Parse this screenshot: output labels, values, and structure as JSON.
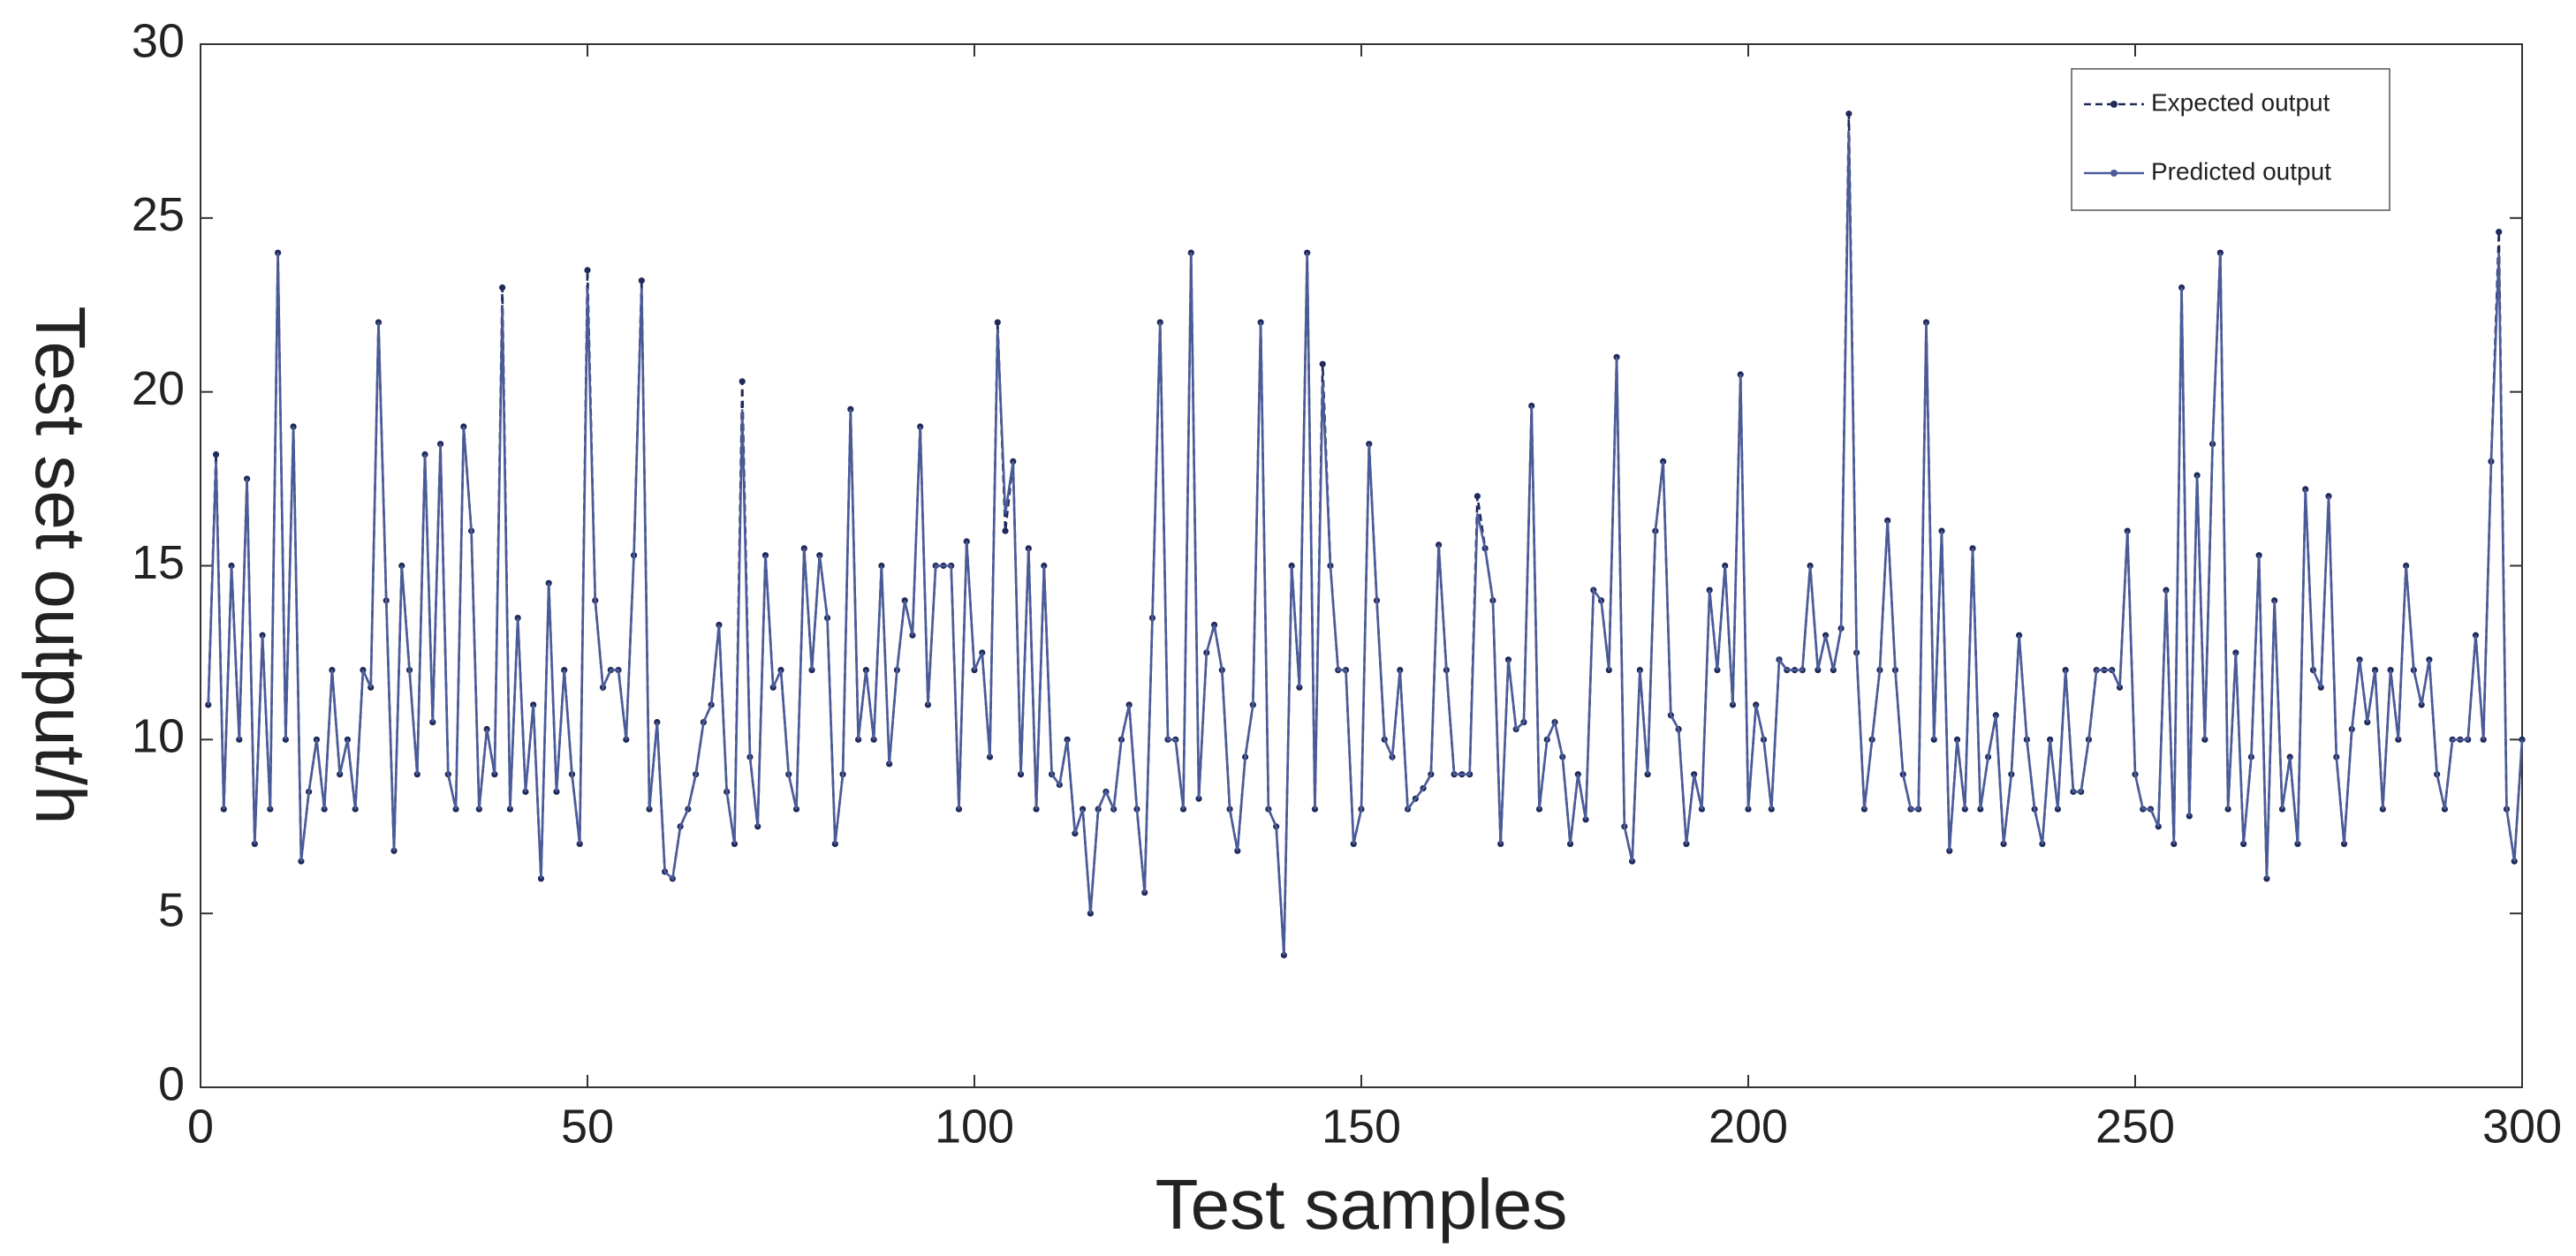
{
  "chart_data": {
    "type": "line",
    "xlabel": "Test samples",
    "ylabel": "Test set output/h",
    "xlim": [
      0,
      300
    ],
    "xticks": [
      0,
      50,
      100,
      150,
      200,
      250,
      300
    ],
    "ylim": [
      0,
      30
    ],
    "yticks": [
      0,
      5,
      10,
      15,
      20,
      25,
      30
    ],
    "legend": "upper right",
    "x": [
      1,
      2,
      3,
      4,
      5,
      6,
      7,
      8,
      9,
      10,
      11,
      12,
      13,
      14,
      15,
      16,
      17,
      18,
      19,
      20,
      21,
      22,
      23,
      24,
      25,
      26,
      27,
      28,
      29,
      30,
      31,
      32,
      33,
      34,
      35,
      36,
      37,
      38,
      39,
      40,
      41,
      42,
      43,
      44,
      45,
      46,
      47,
      48,
      49,
      50,
      51,
      52,
      53,
      54,
      55,
      56,
      57,
      58,
      59,
      60,
      61,
      62,
      63,
      64,
      65,
      66,
      67,
      68,
      69,
      70,
      71,
      72,
      73,
      74,
      75,
      76,
      77,
      78,
      79,
      80,
      81,
      82,
      83,
      84,
      85,
      86,
      87,
      88,
      89,
      90,
      91,
      92,
      93,
      94,
      95,
      96,
      97,
      98,
      99,
      100,
      101,
      102,
      103,
      104,
      105,
      106,
      107,
      108,
      109,
      110,
      111,
      112,
      113,
      114,
      115,
      116,
      117,
      118,
      119,
      120,
      121,
      122,
      123,
      124,
      125,
      126,
      127,
      128,
      129,
      130,
      131,
      132,
      133,
      134,
      135,
      136,
      137,
      138,
      139,
      140,
      141,
      142,
      143,
      144,
      145,
      146,
      147,
      148,
      149,
      150,
      151,
      152,
      153,
      154,
      155,
      156,
      157,
      158,
      159,
      160,
      161,
      162,
      163,
      164,
      165,
      166,
      167,
      168,
      169,
      170,
      171,
      172,
      173,
      174,
      175,
      176,
      177,
      178,
      179,
      180,
      181,
      182,
      183,
      184,
      185,
      186,
      187,
      188,
      189,
      190,
      191,
      192,
      193,
      194,
      195,
      196,
      197,
      198,
      199,
      200,
      201,
      202,
      203,
      204,
      205,
      206,
      207,
      208,
      209,
      210,
      211,
      212,
      213,
      214,
      215,
      216,
      217,
      218,
      219,
      220,
      221,
      222,
      223,
      224,
      225,
      226,
      227,
      228,
      229,
      230,
      231,
      232,
      233,
      234,
      235,
      236,
      237,
      238,
      239,
      240,
      241,
      242,
      243,
      244,
      245,
      246,
      247,
      248,
      249,
      250,
      251,
      252,
      253,
      254,
      255,
      256,
      257,
      258,
      259,
      260,
      261,
      262,
      263,
      264,
      265,
      266,
      267,
      268,
      269,
      270,
      271,
      272,
      273,
      274,
      275,
      276,
      277,
      278,
      279,
      280,
      281,
      282,
      283,
      284,
      285,
      286,
      287,
      288,
      289,
      290,
      291,
      292,
      293,
      294,
      295,
      296,
      297,
      298,
      299,
      300
    ],
    "series": [
      {
        "name": "Expected output",
        "color": "#1f2a5a",
        "style": "dashed",
        "values": [
          11,
          18.2,
          8,
          15,
          10,
          17.5,
          7,
          13,
          8,
          24,
          10,
          19,
          6.5,
          8.5,
          10,
          8,
          12,
          9,
          10,
          8,
          12,
          11.5,
          22,
          14,
          6.8,
          15,
          12,
          9,
          18.2,
          10.5,
          18.5,
          9,
          8,
          19,
          16,
          8,
          10.3,
          9,
          23,
          8,
          13.5,
          8.5,
          11,
          6,
          14.5,
          8.5,
          12,
          9,
          7,
          23.5,
          14,
          11.5,
          12,
          12,
          10,
          15.3,
          23.2,
          8,
          10.5,
          6.2,
          6,
          7.5,
          8,
          9,
          10.5,
          11,
          13.3,
          8.5,
          7,
          20.3,
          9.5,
          7.5,
          15.3,
          11.5,
          12,
          9,
          8,
          15.5,
          12,
          15.3,
          13.5,
          7,
          9,
          19.5,
          10,
          12,
          10,
          15,
          9.3,
          12,
          14,
          13,
          19,
          11,
          15,
          15,
          15,
          8,
          15.7,
          12,
          12.5,
          9.5,
          22,
          16,
          18,
          9,
          15.5,
          8,
          15,
          9,
          8.7,
          10,
          7.3,
          8,
          5,
          8,
          8.5,
          8,
          10,
          11,
          8,
          5.6,
          13.5,
          22,
          10,
          10,
          8,
          24,
          8.3,
          12.5,
          13.3,
          12,
          8,
          6.8,
          9.5,
          11,
          22,
          8,
          7.5,
          3.8,
          15,
          11.5,
          24,
          8,
          20.8,
          15,
          12,
          12,
          7,
          8,
          18.5,
          14,
          10,
          9.5,
          12,
          8,
          8.3,
          8.6,
          9,
          15.6,
          12,
          9,
          9,
          9,
          17,
          15.5,
          14,
          7,
          12.3,
          10.3,
          10.5,
          19.6,
          8,
          10,
          10.5,
          9.5,
          7,
          9,
          7.7,
          14.3,
          14,
          12,
          21,
          7.5,
          6.5,
          12,
          9,
          16,
          18,
          10.7,
          10.3,
          7,
          9,
          8,
          14.3,
          12,
          15,
          11,
          20.5,
          8,
          11,
          10,
          8,
          12.3,
          12,
          12,
          12,
          15,
          12,
          13,
          12,
          13.2,
          28,
          12.5,
          8,
          10,
          12,
          16.3,
          12,
          9,
          8,
          8,
          22,
          10,
          16,
          6.8,
          10,
          8,
          15.5,
          8,
          9.5,
          10.7,
          7,
          9,
          13,
          10,
          8,
          7,
          10,
          8,
          12,
          8.5,
          8.5,
          10,
          12,
          12,
          12,
          11.5,
          16,
          9,
          8,
          8,
          7.5,
          14.3,
          7,
          23,
          7.8,
          17.6,
          10,
          18.5,
          24,
          8,
          12.5,
          7,
          9.5,
          15.3,
          6,
          14,
          8,
          9.5,
          7,
          17.2,
          12,
          11.5,
          17,
          9.5,
          7,
          10.3,
          12.3,
          10.5,
          12,
          8,
          12,
          10,
          15,
          12,
          11,
          12.3,
          9,
          8,
          10,
          10,
          10,
          13,
          10,
          18,
          24.6,
          8,
          6.5,
          10
        ]
      },
      {
        "name": "Predicted output",
        "color": "#4b5b98",
        "style": "solid",
        "values": [
          11,
          18,
          8,
          15,
          10,
          17.5,
          7,
          13,
          8,
          24,
          10,
          19,
          6.5,
          8.5,
          10,
          8,
          12,
          9,
          10,
          8,
          12,
          11.5,
          22,
          14,
          6.8,
          15,
          12,
          9,
          18.2,
          10.5,
          18.5,
          9,
          8,
          19,
          16,
          8,
          10.3,
          9,
          22.5,
          8,
          13.5,
          8.5,
          11,
          6,
          14.5,
          8.5,
          12,
          9,
          7,
          23,
          14,
          11.5,
          12,
          12,
          10,
          15.3,
          23,
          8,
          10.5,
          6.2,
          6,
          7.5,
          8,
          9,
          10.5,
          11,
          13.3,
          8.5,
          7,
          19.5,
          9.5,
          7.5,
          15.3,
          11.5,
          12,
          9,
          8,
          15.5,
          12,
          15.3,
          13.5,
          7,
          9,
          19.5,
          10,
          12,
          10,
          15,
          9.3,
          12,
          14,
          13,
          19,
          11,
          15,
          15,
          15,
          8,
          15.7,
          12,
          12.5,
          9.5,
          21.8,
          16.5,
          18,
          9,
          15.5,
          8,
          15,
          9,
          8.7,
          10,
          7.3,
          8,
          5,
          8,
          8.5,
          8,
          10,
          11,
          8,
          5.6,
          13.5,
          22,
          10,
          10,
          8,
          24,
          8.3,
          12.5,
          13.3,
          12,
          8,
          6.8,
          9.5,
          11,
          22,
          8,
          7.5,
          3.8,
          15,
          11.5,
          24,
          8,
          20.3,
          15,
          12,
          12,
          7,
          8,
          18.5,
          14,
          10,
          9.5,
          12,
          8,
          8.3,
          8.6,
          9,
          15.6,
          12,
          9,
          9,
          9,
          16.5,
          15.5,
          14,
          7,
          12.3,
          10.3,
          10.5,
          19.6,
          8,
          10,
          10.5,
          9.5,
          7,
          9,
          7.7,
          14.3,
          14,
          12,
          21,
          7.5,
          6.5,
          12,
          9,
          16,
          18,
          10.7,
          10.3,
          7,
          9,
          8,
          14.3,
          12,
          15,
          11,
          20.5,
          8,
          11,
          10,
          8,
          12.3,
          12,
          12,
          12,
          15,
          12,
          13,
          12,
          13.2,
          27.5,
          12.5,
          8,
          10,
          12,
          16.3,
          12,
          9,
          8,
          8,
          22,
          10,
          16,
          6.8,
          10,
          8,
          15.5,
          8,
          9.5,
          10.7,
          7,
          9,
          13,
          10,
          8,
          7,
          10,
          8,
          12,
          8.5,
          8.5,
          10,
          12,
          12,
          12,
          11.5,
          16,
          9,
          8,
          8,
          7.5,
          14.3,
          7,
          23,
          7.8,
          17.6,
          10,
          18.5,
          24,
          8,
          12.5,
          7,
          9.5,
          15.3,
          6,
          14,
          8,
          9.5,
          7,
          17.2,
          12,
          11.5,
          17,
          9.5,
          7,
          10.3,
          12.3,
          10.5,
          12,
          8,
          12,
          10,
          15,
          12,
          11,
          12.3,
          9,
          8,
          10,
          10,
          10,
          13,
          10,
          18,
          24,
          8,
          6.5,
          10
        ]
      }
    ]
  }
}
